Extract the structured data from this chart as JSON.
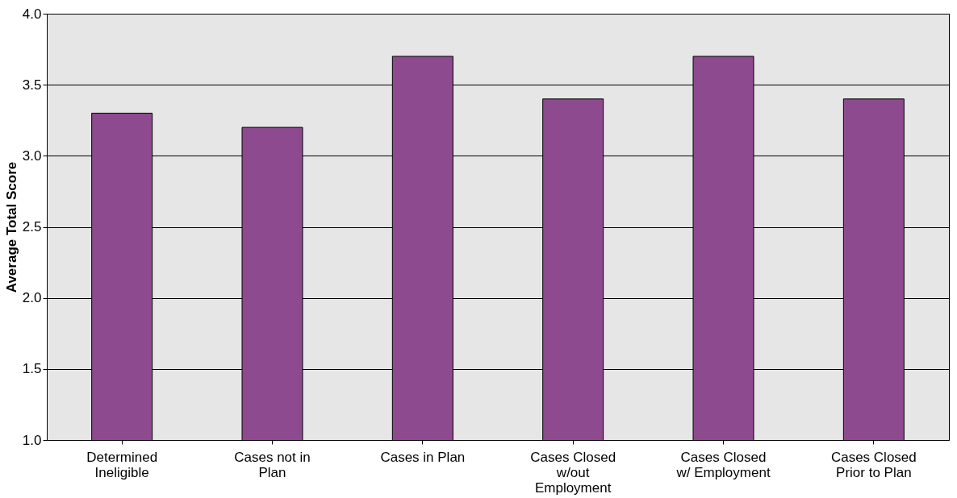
{
  "chart_data": {
    "type": "bar",
    "ylabel": "Average Total Score",
    "categories": [
      "Determined Ineligible",
      "Cases not in Plan",
      "Cases in Plan",
      "Cases Closed w/out Employment",
      "Cases Closed w/ Employment",
      "Cases Closed Prior to Plan"
    ],
    "series": [
      {
        "color": "#8e4a8e",
        "values": [
          3.3,
          3.2,
          3.7,
          3.4,
          3.7,
          3.4
        ]
      }
    ],
    "ylim": [
      1.0,
      4.0
    ],
    "yticks": [
      {
        "value": 1,
        "label": "1.0"
      },
      {
        "value": 1.5,
        "label": "1.5"
      },
      {
        "value": 2,
        "label": "2.0"
      },
      {
        "value": 2.5,
        "label": "2.5"
      },
      {
        "value": 3,
        "label": "3.0"
      },
      {
        "value": 3.5,
        "label": "3.5"
      },
      {
        "value": 4,
        "label": "4.0"
      }
    ],
    "grid": "y"
  }
}
